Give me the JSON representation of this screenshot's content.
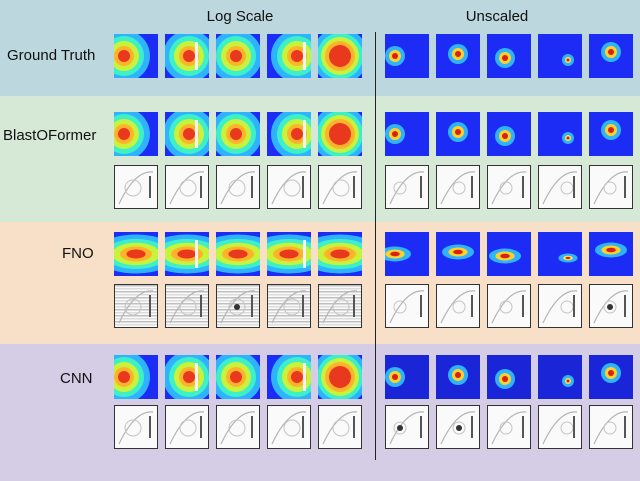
{
  "headers": {
    "log_scale": "Log Scale",
    "unscaled": "Unscaled"
  },
  "rows": [
    {
      "label": "Ground Truth",
      "color": "#bcd7de"
    },
    {
      "label": "BlastOFormer",
      "color": "#d6e9d6"
    },
    {
      "label": "FNO",
      "color": "#f8dfc8"
    },
    {
      "label": "CNN",
      "color": "#d5cce6"
    }
  ],
  "palette": {
    "heat_low": "#1d2cf5",
    "heat_high": "#c41a1a",
    "error_bg": "#fafafa"
  }
}
